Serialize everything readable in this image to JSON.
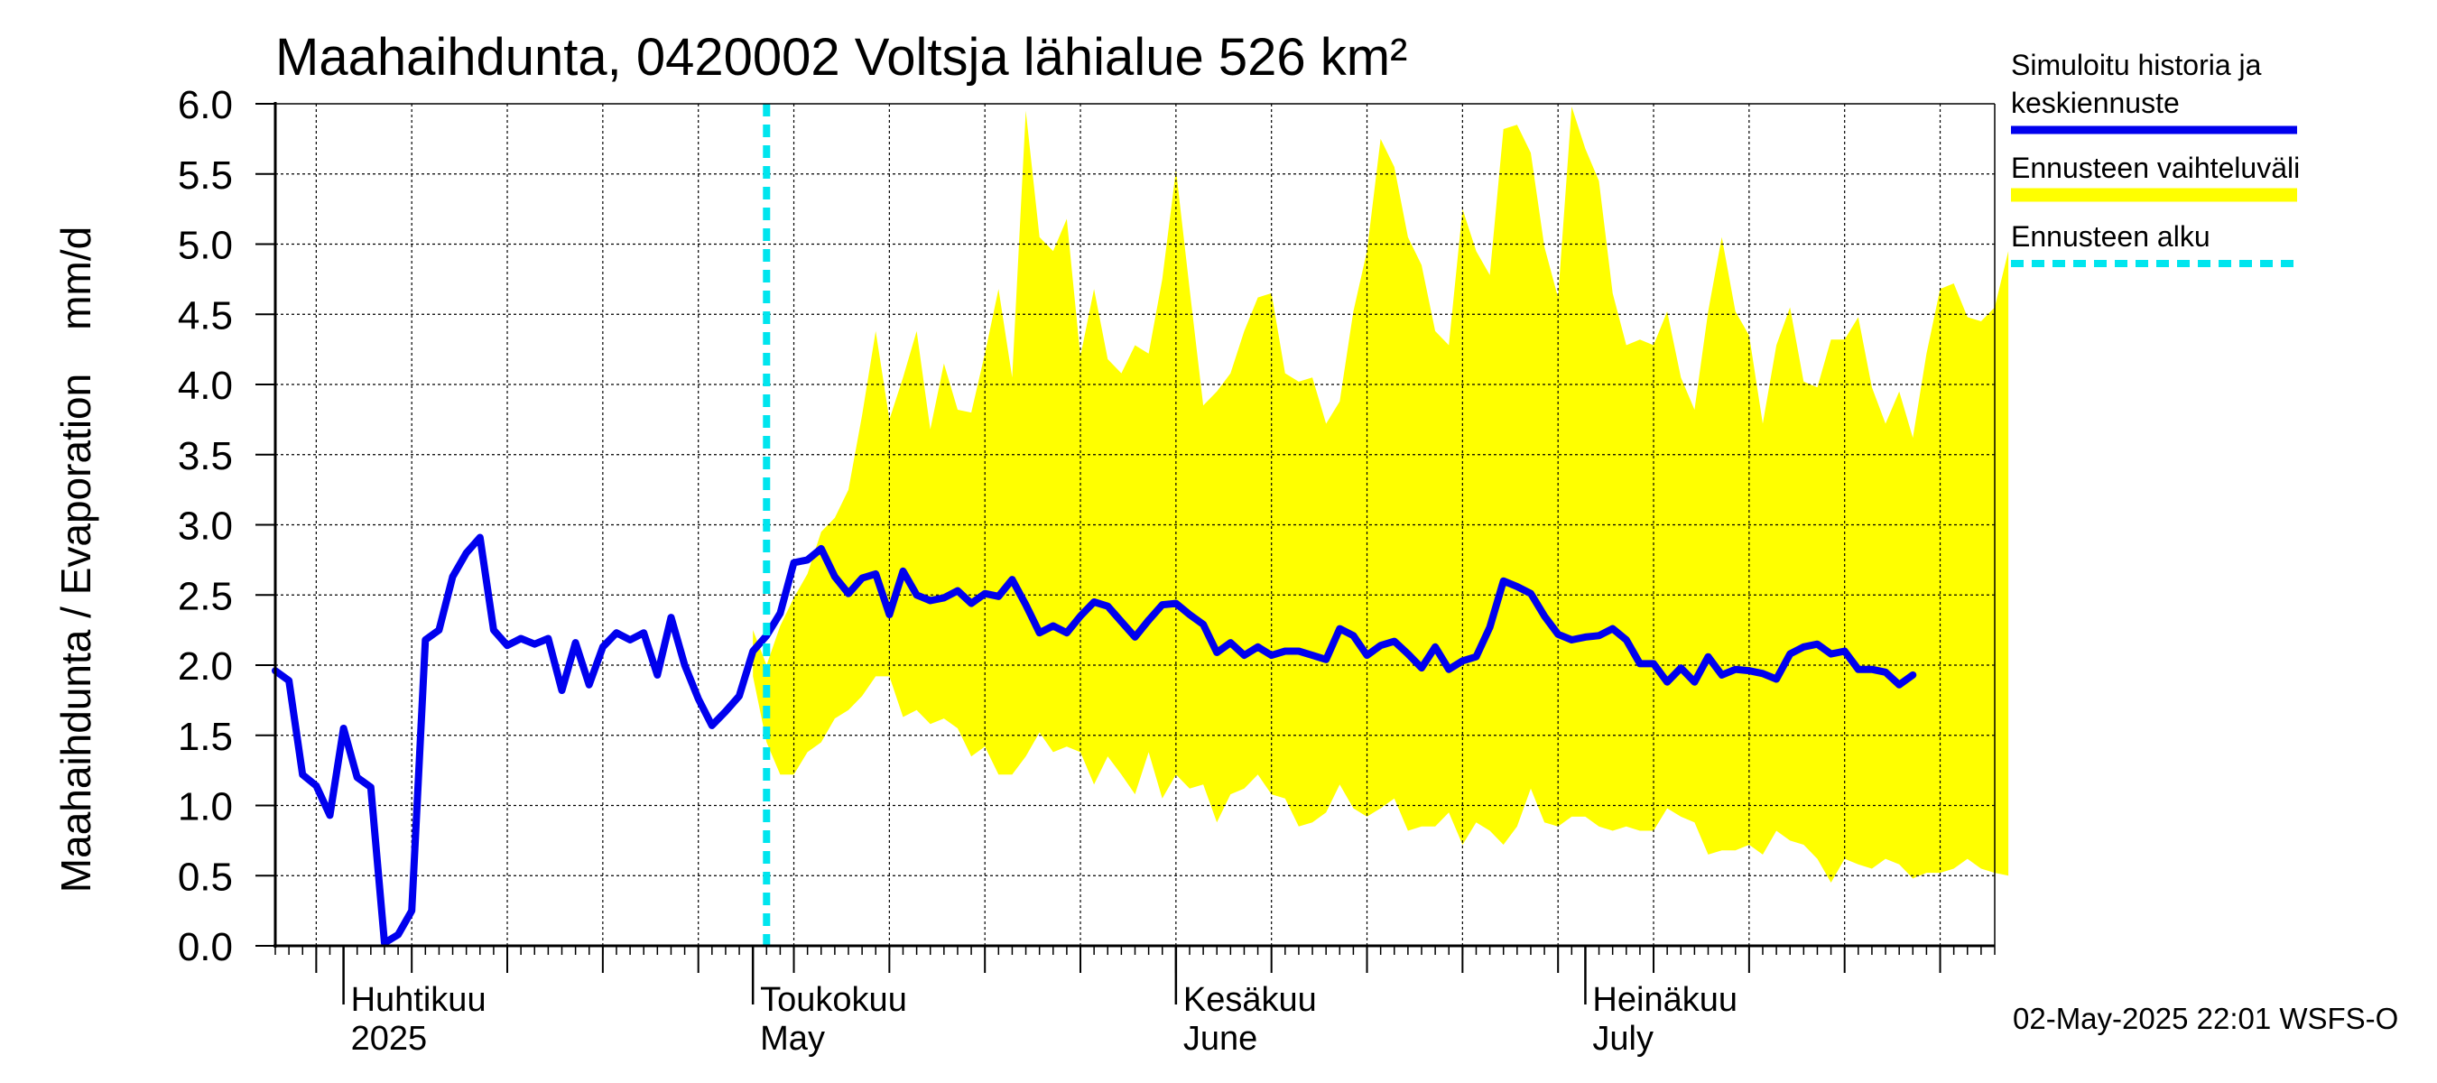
{
  "title": "Maahaihdunta, 0420002 Voltsja lähialue 526 km²",
  "ylabel_left": "Maahaihdunta / Evaporation",
  "ylabel_unit": "mm/d",
  "legend": [
    {
      "label_lines": [
        "Simuloitu historia ja",
        "keskiennuste"
      ],
      "color": "#0000ee",
      "style": "solid"
    },
    {
      "label_lines": [
        "Ennusteen vaihteluväli"
      ],
      "color": "#ffff00",
      "style": "solid"
    },
    {
      "label_lines": [
        "Ennusteen alku"
      ],
      "color": "#00e5ee",
      "style": "dashed"
    }
  ],
  "footer": "02-May-2025 22:01 WSFS-O",
  "chart_data": {
    "type": "line",
    "ylim": [
      0,
      6
    ],
    "yticks": [
      "0.0",
      "0.5",
      "1.0",
      "1.5",
      "2.0",
      "2.5",
      "3.0",
      "3.5",
      "4.0",
      "4.5",
      "5.0",
      "5.5",
      "6.0"
    ],
    "x_range": [
      "2025-03-27",
      "2025-07-31"
    ],
    "grid": true,
    "forecast_start": "2025-05-02",
    "month_labels": [
      {
        "date": "2025-04-01",
        "line1": "Huhtikuu",
        "line2": "2025"
      },
      {
        "date": "2025-05-01",
        "line1": "Toukokuu",
        "line2": "May"
      },
      {
        "date": "2025-06-01",
        "line1": "Kesäkuu",
        "line2": "June"
      },
      {
        "date": "2025-07-01",
        "line1": "Heinäkuu",
        "line2": "July"
      }
    ],
    "series": [
      {
        "name": "Simuloitu historia ja keskiennuste",
        "color": "#0000ee",
        "start_date": "2025-03-27",
        "values": [
          1.96,
          1.89,
          1.22,
          1.14,
          0.93,
          1.55,
          1.2,
          1.13,
          0.02,
          0.08,
          0.25,
          2.18,
          2.25,
          2.63,
          2.8,
          2.91,
          2.25,
          2.14,
          2.19,
          2.15,
          2.19,
          1.82,
          2.16,
          1.86,
          2.13,
          2.23,
          2.18,
          2.23,
          1.93,
          2.34,
          2.0,
          1.76,
          1.57,
          1.67,
          1.78,
          2.1,
          2.21,
          2.37,
          2.73,
          2.75,
          2.83,
          2.63,
          2.51,
          2.62,
          2.65,
          2.36,
          2.67,
          2.5,
          2.46,
          2.48,
          2.53,
          2.44,
          2.51,
          2.49,
          2.61,
          2.43,
          2.23,
          2.28,
          2.23,
          2.35,
          2.45,
          2.42,
          2.31,
          2.2,
          2.32,
          2.43,
          2.44,
          2.36,
          2.29,
          2.09,
          2.16,
          2.07,
          2.13,
          2.07,
          2.1,
          2.1,
          2.07,
          2.04,
          2.26,
          2.21,
          2.07,
          2.14,
          2.17,
          2.08,
          1.98,
          2.13,
          1.97,
          2.03,
          2.06,
          2.27,
          2.6,
          2.56,
          2.51,
          2.35,
          2.22,
          2.18,
          2.2,
          2.21,
          2.26,
          2.18,
          2.01,
          2.01,
          1.88,
          1.98,
          1.88,
          2.06,
          1.93,
          1.97,
          1.96,
          1.94,
          1.9,
          2.08,
          2.13,
          2.15,
          2.08,
          2.1,
          1.97,
          1.97,
          1.95,
          1.86,
          1.93
        ]
      },
      {
        "name": "Ennusteen vaihteluväli",
        "color": "#ffff00",
        "start_date": "2025-05-01",
        "upper": [
          2.25,
          2.0,
          2.28,
          2.48,
          2.65,
          2.95,
          3.05,
          3.25,
          3.78,
          4.38,
          3.75,
          4.05,
          4.38,
          3.68,
          4.15,
          3.82,
          3.8,
          4.22,
          4.68,
          4.05,
          5.95,
          5.05,
          4.95,
          5.18,
          4.2,
          4.68,
          4.18,
          4.08,
          4.28,
          4.22,
          4.75,
          5.53,
          4.68,
          3.85,
          3.95,
          4.08,
          4.38,
          4.62,
          4.65,
          4.08,
          4.02,
          4.05,
          3.72,
          3.88,
          4.52,
          4.95,
          5.75,
          5.55,
          5.05,
          4.85,
          4.38,
          4.28,
          5.25,
          4.95,
          4.78,
          5.82,
          5.85,
          5.65,
          4.98,
          4.62,
          5.98,
          5.68,
          5.45,
          4.65,
          4.28,
          4.32,
          4.28,
          4.52,
          4.05,
          3.82,
          4.52,
          5.05,
          4.52,
          4.35,
          3.72,
          4.28,
          4.55,
          4.02,
          3.98,
          4.32,
          4.32,
          4.48,
          3.98,
          3.72,
          3.95,
          3.62,
          4.22,
          4.68,
          4.72,
          4.48,
          4.45,
          4.55,
          4.95
        ],
        "lower": [
          1.92,
          1.45,
          1.22,
          1.22,
          1.38,
          1.45,
          1.62,
          1.68,
          1.78,
          1.92,
          1.92,
          1.63,
          1.68,
          1.58,
          1.62,
          1.55,
          1.35,
          1.42,
          1.22,
          1.22,
          1.35,
          1.52,
          1.38,
          1.42,
          1.38,
          1.15,
          1.35,
          1.22,
          1.08,
          1.38,
          1.05,
          1.22,
          1.12,
          1.15,
          0.88,
          1.08,
          1.12,
          1.22,
          1.08,
          1.05,
          0.85,
          0.88,
          0.95,
          1.15,
          0.98,
          0.92,
          0.98,
          1.05,
          0.82,
          0.85,
          0.85,
          0.95,
          0.72,
          0.88,
          0.82,
          0.72,
          0.85,
          1.12,
          0.88,
          0.85,
          0.92,
          0.92,
          0.85,
          0.82,
          0.85,
          0.82,
          0.82,
          0.98,
          0.92,
          0.88,
          0.65,
          0.68,
          0.68,
          0.72,
          0.65,
          0.82,
          0.75,
          0.72,
          0.62,
          0.45,
          0.62,
          0.58,
          0.55,
          0.62,
          0.58,
          0.48,
          0.52,
          0.52,
          0.55,
          0.62,
          0.55,
          0.52,
          0.5
        ]
      }
    ]
  }
}
